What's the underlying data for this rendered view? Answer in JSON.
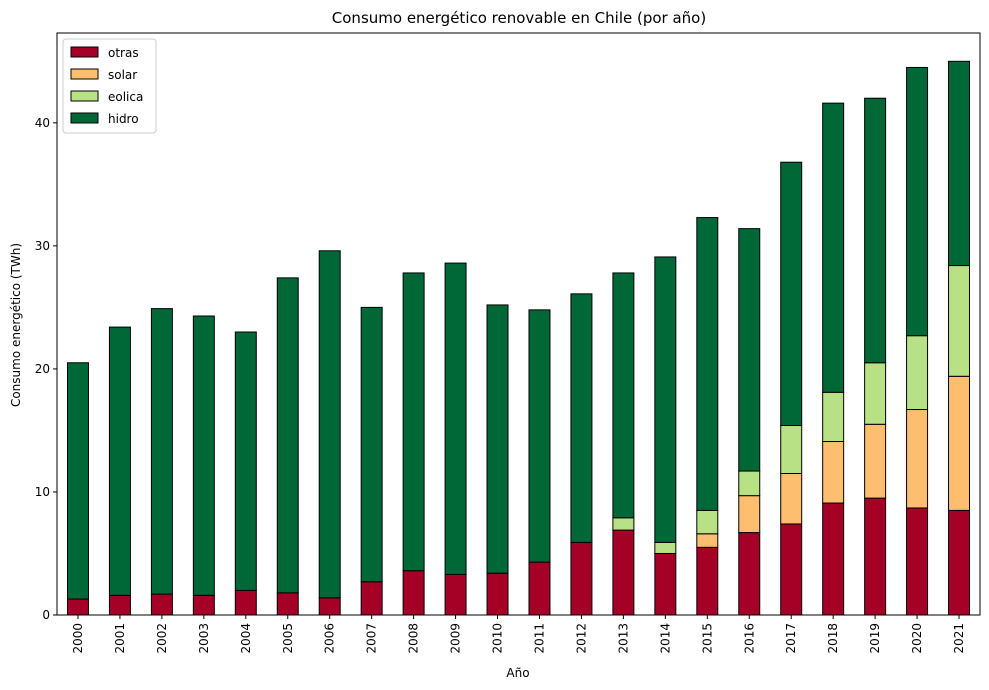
{
  "chart_data": {
    "type": "bar",
    "stacked": true,
    "title": "Consumo energético renovable en Chile (por año)",
    "xlabel": "Año",
    "ylabel": "Consumo energético (TWh)",
    "ylim": [
      0,
      47.3
    ],
    "yticks": [
      0,
      10,
      20,
      30,
      40
    ],
    "grid": false,
    "legend_position": "top-left",
    "categories": [
      "2000",
      "2001",
      "2002",
      "2003",
      "2004",
      "2005",
      "2006",
      "2007",
      "2008",
      "2009",
      "2010",
      "2011",
      "2012",
      "2013",
      "2014",
      "2015",
      "2016",
      "2017",
      "2018",
      "2019",
      "2020",
      "2021"
    ],
    "series": [
      {
        "name": "otras",
        "color": "#a50026",
        "values": [
          1.3,
          1.6,
          1.7,
          1.6,
          2.0,
          1.8,
          1.4,
          2.7,
          3.6,
          3.3,
          3.4,
          4.3,
          5.9,
          6.9,
          5.0,
          5.5,
          6.7,
          7.4,
          9.1,
          9.5,
          8.7,
          8.5
        ]
      },
      {
        "name": "solar",
        "color": "#fdbf6f",
        "values": [
          0,
          0,
          0,
          0,
          0,
          0,
          0,
          0,
          0,
          0,
          0,
          0,
          0,
          0,
          0,
          1.1,
          3.0,
          4.1,
          5.0,
          6.0,
          8.0,
          10.9
        ]
      },
      {
        "name": "eolica",
        "color": "#b8e186",
        "values": [
          0,
          0,
          0,
          0,
          0,
          0,
          0,
          0,
          0,
          0,
          0,
          0,
          0,
          1.0,
          0.9,
          1.9,
          2.0,
          3.9,
          4.0,
          5.0,
          6.0,
          9.0
        ]
      },
      {
        "name": "hidro",
        "color": "#006837",
        "values": [
          19.2,
          21.8,
          23.2,
          22.7,
          21.0,
          25.6,
          28.2,
          22.3,
          24.2,
          25.3,
          21.8,
          20.5,
          20.2,
          19.9,
          23.2,
          23.8,
          19.7,
          21.4,
          23.5,
          21.5,
          21.8,
          16.6
        ]
      }
    ]
  }
}
